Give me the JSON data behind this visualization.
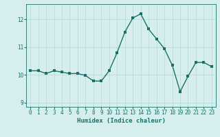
{
  "x": [
    0,
    1,
    2,
    3,
    4,
    5,
    6,
    7,
    8,
    9,
    10,
    11,
    12,
    13,
    14,
    15,
    16,
    17,
    18,
    19,
    20,
    21,
    22,
    23
  ],
  "y": [
    10.15,
    10.15,
    10.05,
    10.15,
    10.1,
    10.05,
    10.05,
    9.98,
    9.78,
    9.78,
    10.15,
    10.8,
    11.55,
    12.05,
    12.2,
    11.65,
    11.3,
    10.95,
    10.35,
    9.4,
    9.95,
    10.45,
    10.45,
    10.3
  ],
  "line_color": "#1a7068",
  "marker_color": "#1a7068",
  "bg_color": "#d6eeee",
  "grid_color": "#b8dcdc",
  "tick_label_color": "#1a7068",
  "xlabel": "Humidex (Indice chaleur)",
  "xlabel_color": "#1a7068",
  "xlabel_fontsize": 6.5,
  "ylim": [
    8.85,
    12.55
  ],
  "xlim": [
    -0.5,
    23.5
  ],
  "yticks": [
    9,
    10,
    11,
    12
  ],
  "xticks": [
    0,
    1,
    2,
    3,
    4,
    5,
    6,
    7,
    8,
    9,
    10,
    11,
    12,
    13,
    14,
    15,
    16,
    17,
    18,
    19,
    20,
    21,
    22,
    23
  ],
  "tick_fontsize": 5.5,
  "line_width": 1.0,
  "marker_size": 2.2
}
